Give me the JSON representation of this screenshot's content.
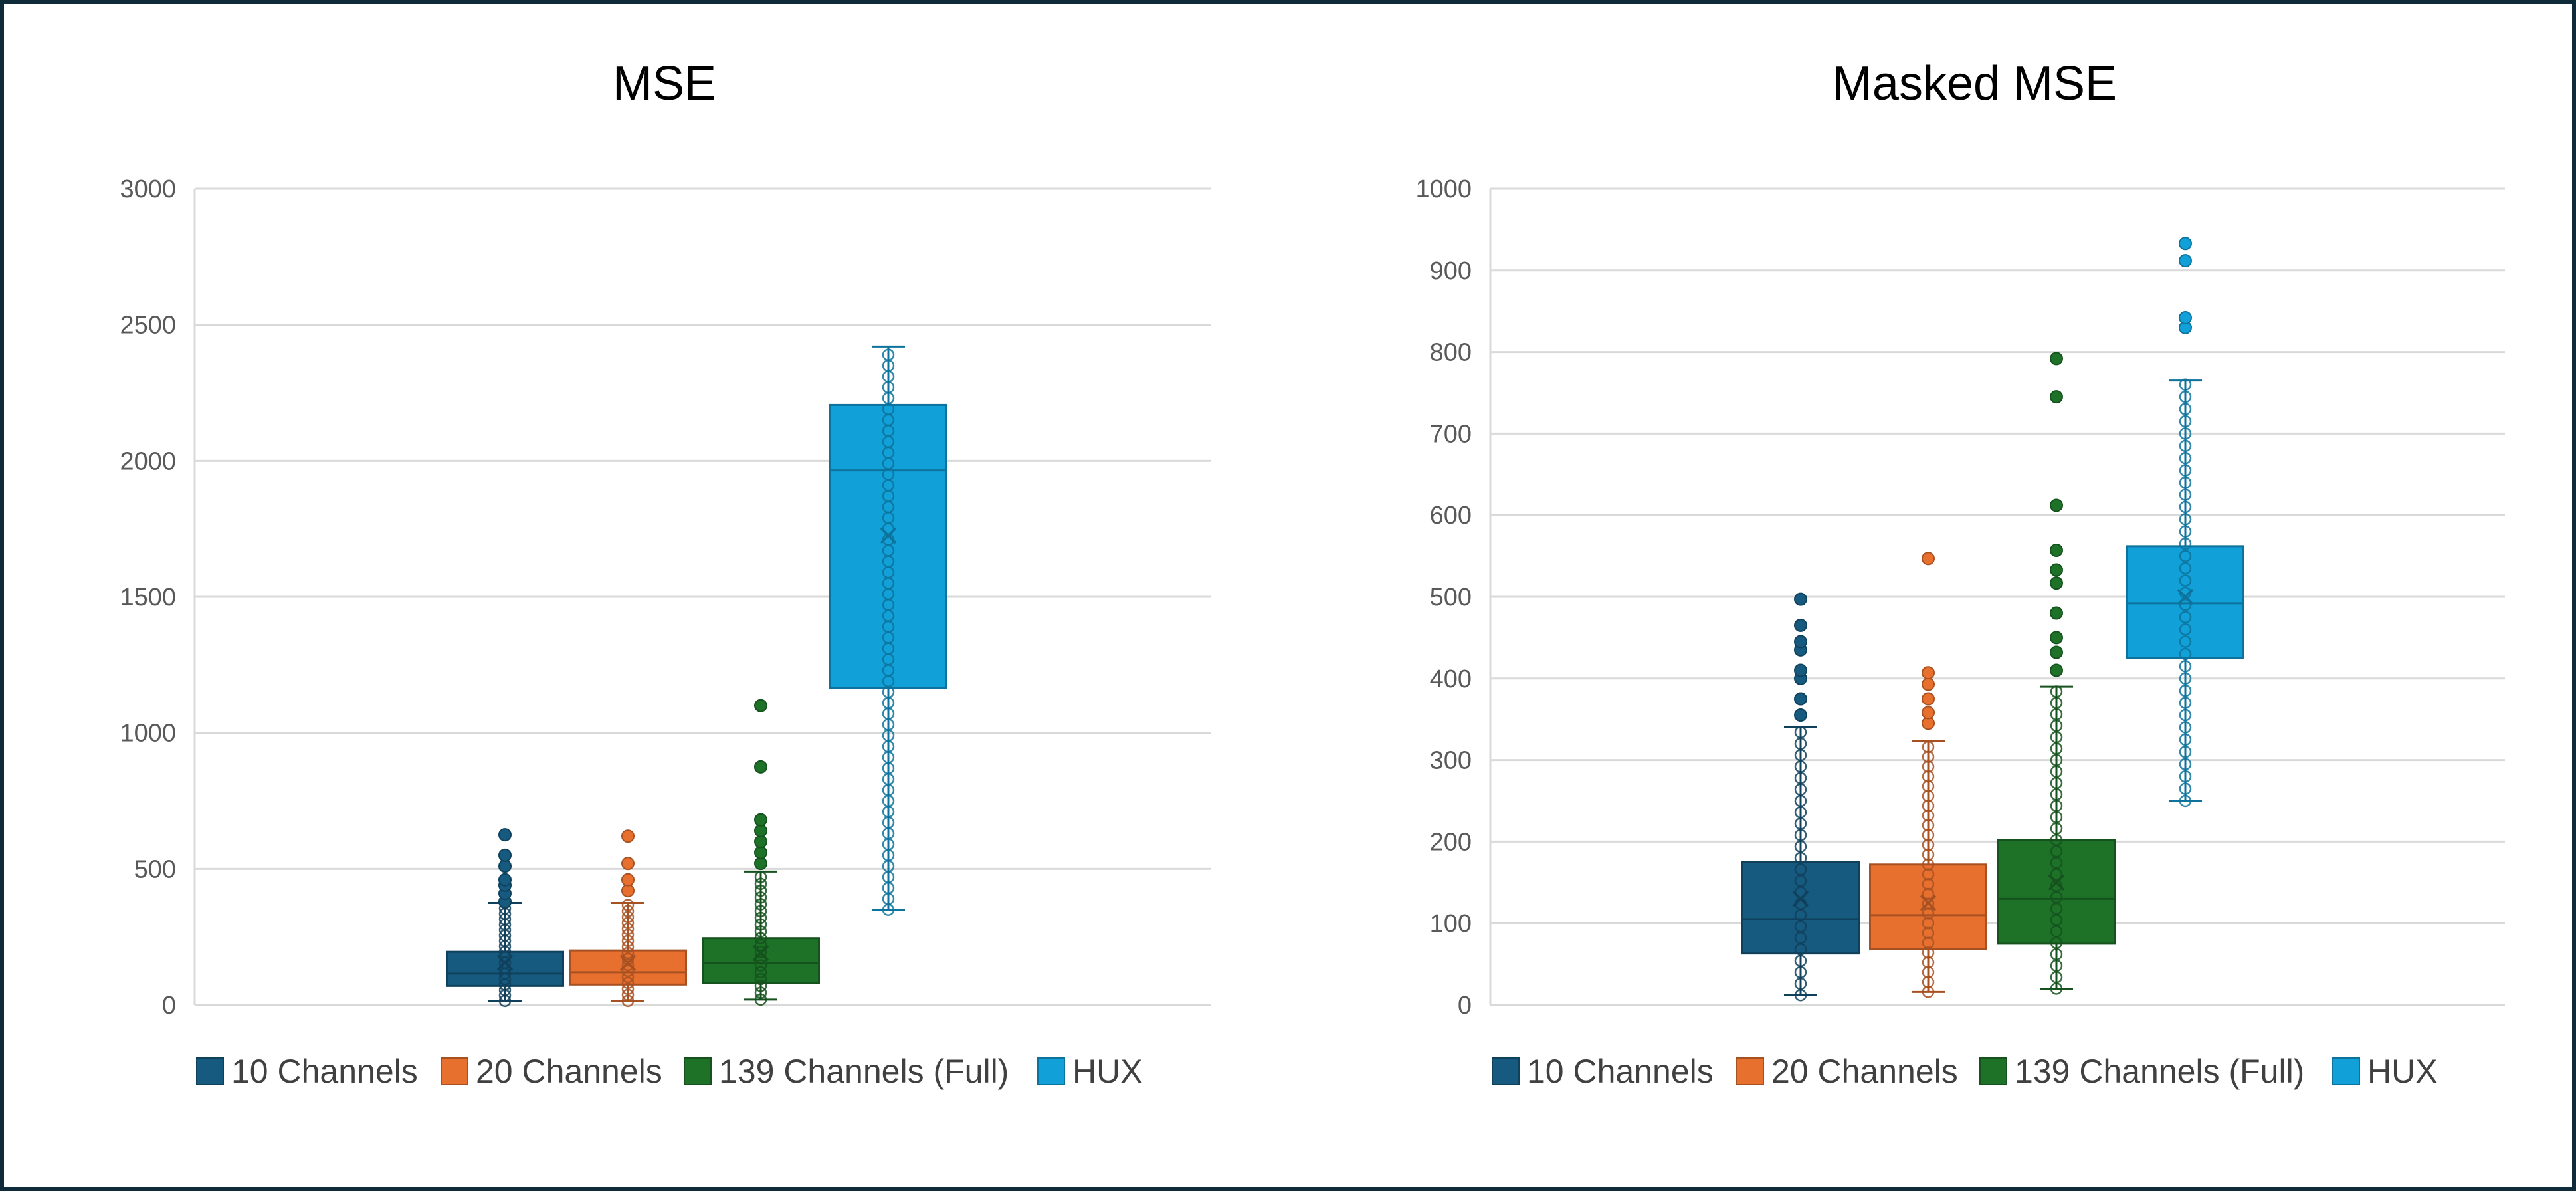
{
  "colors": {
    "c10": "#165a80",
    "c20": "#e8702f",
    "c139": "#1d7228",
    "hux": "#12a0d8",
    "grid": "#d9d9d9",
    "frame": "#0f2b3a"
  },
  "legend": [
    {
      "label": "10 Channels",
      "color": "#165a80"
    },
    {
      "label": "20 Channels",
      "color": "#e8702f"
    },
    {
      "label": "139 Channels (Full)",
      "color": "#1d7228"
    },
    {
      "label": "HUX",
      "color": "#12a0d8"
    }
  ],
  "chart_data": [
    {
      "type": "box",
      "title": "MSE",
      "ylim": [
        0,
        3000
      ],
      "yticks": [
        0,
        500,
        1000,
        1500,
        2000,
        2500,
        3000
      ],
      "grid": true,
      "legend_position": "bottom",
      "series": [
        {
          "name": "10 Channels",
          "q1": 70,
          "median": 115,
          "q3": 195,
          "mean": 155,
          "whisker_low": 15,
          "whisker_high": 375,
          "outliers": [
            380,
            410,
            440,
            460,
            510,
            550,
            625
          ],
          "points_step": 20
        },
        {
          "name": "20 Channels",
          "q1": 75,
          "median": 120,
          "q3": 200,
          "mean": 155,
          "whisker_low": 15,
          "whisker_high": 375,
          "outliers": [
            420,
            460,
            520,
            620
          ],
          "points_step": 22
        },
        {
          "name": "139 Channels (Full)",
          "q1": 80,
          "median": 155,
          "q3": 245,
          "mean": 190,
          "whisker_low": 20,
          "whisker_high": 490,
          "outliers": [
            520,
            560,
            600,
            640,
            680,
            875,
            1100
          ],
          "points_step": 25
        },
        {
          "name": "HUX",
          "q1": 1165,
          "median": 1965,
          "q3": 2205,
          "mean": 1725,
          "whisker_low": 350,
          "whisker_high": 2420,
          "outliers": [],
          "points_step": 40
        }
      ]
    },
    {
      "type": "box",
      "title": "Masked MSE",
      "ylim": [
        0,
        1000
      ],
      "yticks": [
        0,
        100,
        200,
        300,
        400,
        500,
        600,
        700,
        800,
        900,
        1000
      ],
      "grid": true,
      "legend_position": "bottom",
      "series": [
        {
          "name": "10 Channels",
          "q1": 63,
          "median": 105,
          "q3": 175,
          "mean": 130,
          "whisker_low": 12,
          "whisker_high": 340,
          "outliers": [
            355,
            375,
            400,
            410,
            435,
            445,
            465,
            497
          ],
          "points_step": 14
        },
        {
          "name": "20 Channels",
          "q1": 68,
          "median": 110,
          "q3": 172,
          "mean": 125,
          "whisker_low": 16,
          "whisker_high": 323,
          "outliers": [
            345,
            358,
            375,
            393,
            407,
            547
          ],
          "points_step": 12
        },
        {
          "name": "139 Channels (Full)",
          "q1": 75,
          "median": 130,
          "q3": 202,
          "mean": 150,
          "whisker_low": 20,
          "whisker_high": 390,
          "outliers": [
            410,
            432,
            450,
            480,
            517,
            533,
            557,
            612,
            745,
            792
          ],
          "points_step": 14
        },
        {
          "name": "HUX",
          "q1": 425,
          "median": 492,
          "q3": 562,
          "mean": 500,
          "whisker_low": 250,
          "whisker_high": 765,
          "outliers": [
            830,
            842,
            912,
            933
          ],
          "points_step": 15
        }
      ]
    }
  ]
}
